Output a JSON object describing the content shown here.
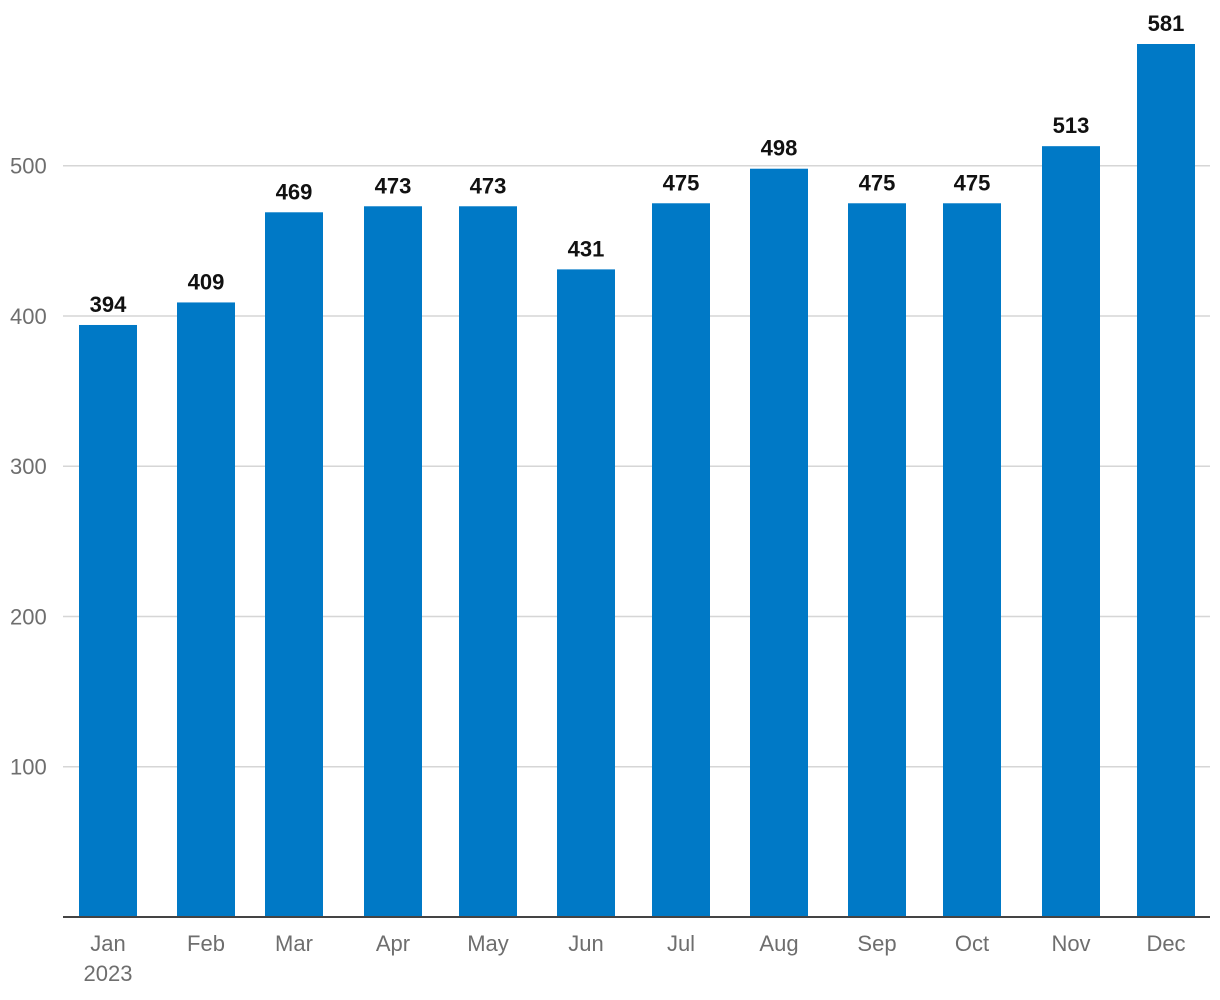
{
  "chart_data": {
    "type": "bar",
    "title": "",
    "xlabel": "",
    "ylabel": "",
    "categories": [
      "Jan",
      "Feb",
      "Mar",
      "Apr",
      "May",
      "Jun",
      "Jul",
      "Aug",
      "Sep",
      "Oct",
      "Nov",
      "Dec"
    ],
    "year_label": "2023",
    "values": [
      394,
      409,
      469,
      473,
      473,
      431,
      475,
      498,
      475,
      475,
      513,
      581
    ],
    "y_ticks": [
      100,
      200,
      300,
      400,
      500
    ],
    "ylim": [
      0,
      581
    ],
    "grid": true,
    "legend": "none",
    "bar_color": "#0079c6"
  }
}
